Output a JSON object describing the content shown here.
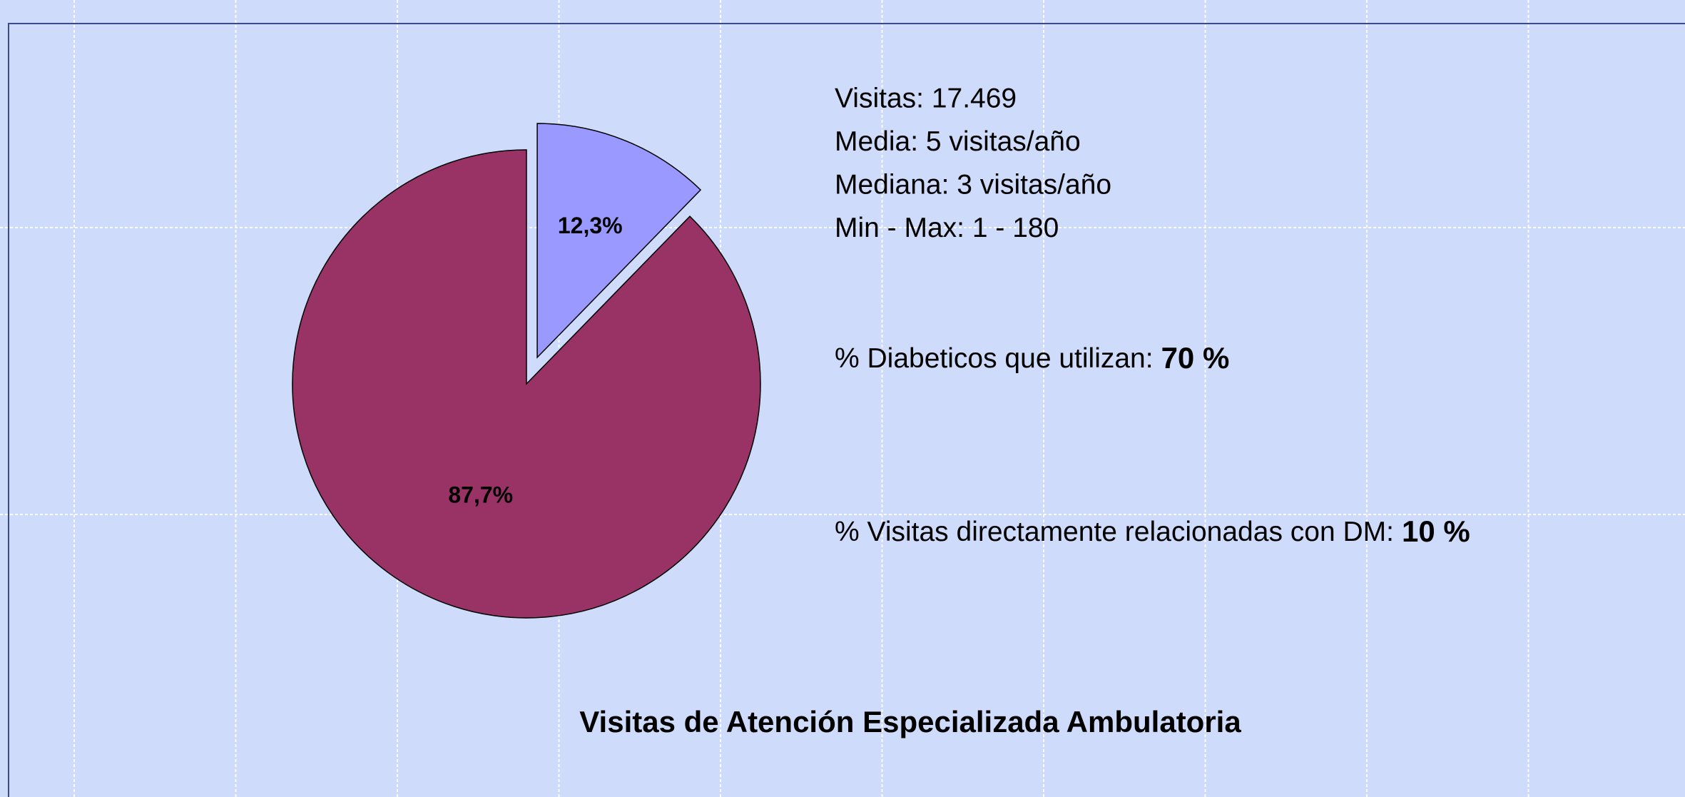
{
  "chart_data": {
    "type": "pie",
    "title": "Visitas de Atención Especializada Ambulatoria",
    "values": [
      12.3,
      87.7
    ],
    "value_labels": [
      "12,3%",
      "87,7%"
    ],
    "colors": [
      "#9999ff",
      "#993366"
    ],
    "explode": [
      true,
      false
    ],
    "annotations": {
      "stats": [
        "Visitas: 17.469",
        "Media: 5 visitas/año",
        "Mediana: 3 visitas/año",
        "Min - Max: 1 - 180"
      ],
      "highlights": [
        {
          "text": "% Diabeticos que utilizan:",
          "emphasis": "70 %"
        },
        {
          "text": "% Visitas directamente relacionadas con DM:",
          "emphasis": "10 %"
        }
      ]
    }
  }
}
